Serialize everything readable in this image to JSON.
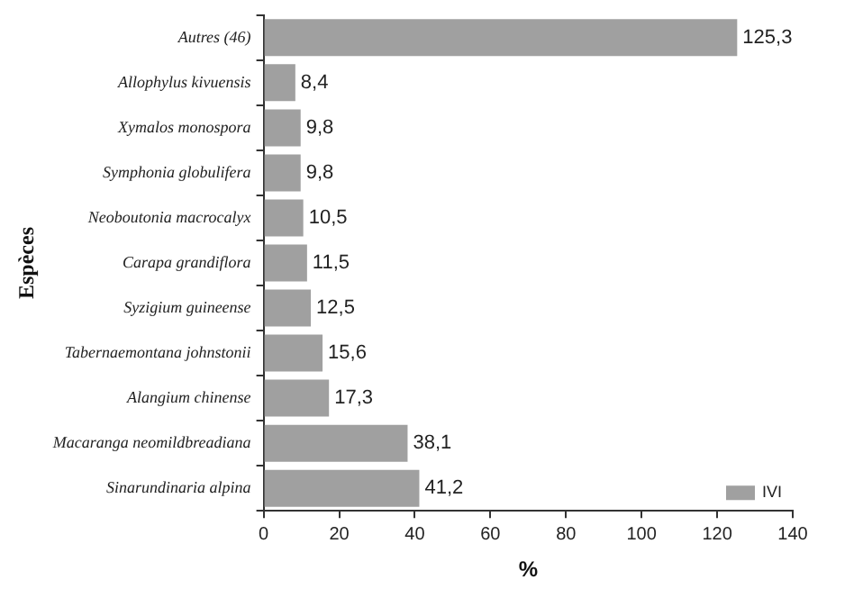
{
  "chart_data": {
    "type": "bar",
    "orientation": "horizontal",
    "xlabel": "%",
    "ylabel": "Espèces",
    "categories": [
      "Autres (46)",
      "Allophylus kivuensis",
      "Xymalos monospora",
      "Symphonia globulifera",
      "Neoboutonia macrocalyx",
      "Carapa grandiflora",
      "Syzigium guineense",
      "Tabernaemontana johnstonii",
      "Alangium chinense",
      "Macaranga neomildbreadiana",
      "Sinarundinaria alpina"
    ],
    "series": [
      {
        "name": "IVI",
        "color": "#a0a0a0",
        "values": [
          125.3,
          8.4,
          9.8,
          9.8,
          10.5,
          11.5,
          12.5,
          15.6,
          17.3,
          38.1,
          41.2
        ],
        "value_labels": [
          "125,3",
          "8,4",
          "9,8",
          "9,8",
          "10,5",
          "11,5",
          "12,5",
          "15,6",
          "17,3",
          "38,1",
          "41,2"
        ]
      }
    ],
    "xlim": [
      0,
      140
    ],
    "xticks": [
      0,
      20,
      40,
      60,
      80,
      100,
      120,
      140
    ],
    "legend": "bottom right",
    "grid": false
  }
}
